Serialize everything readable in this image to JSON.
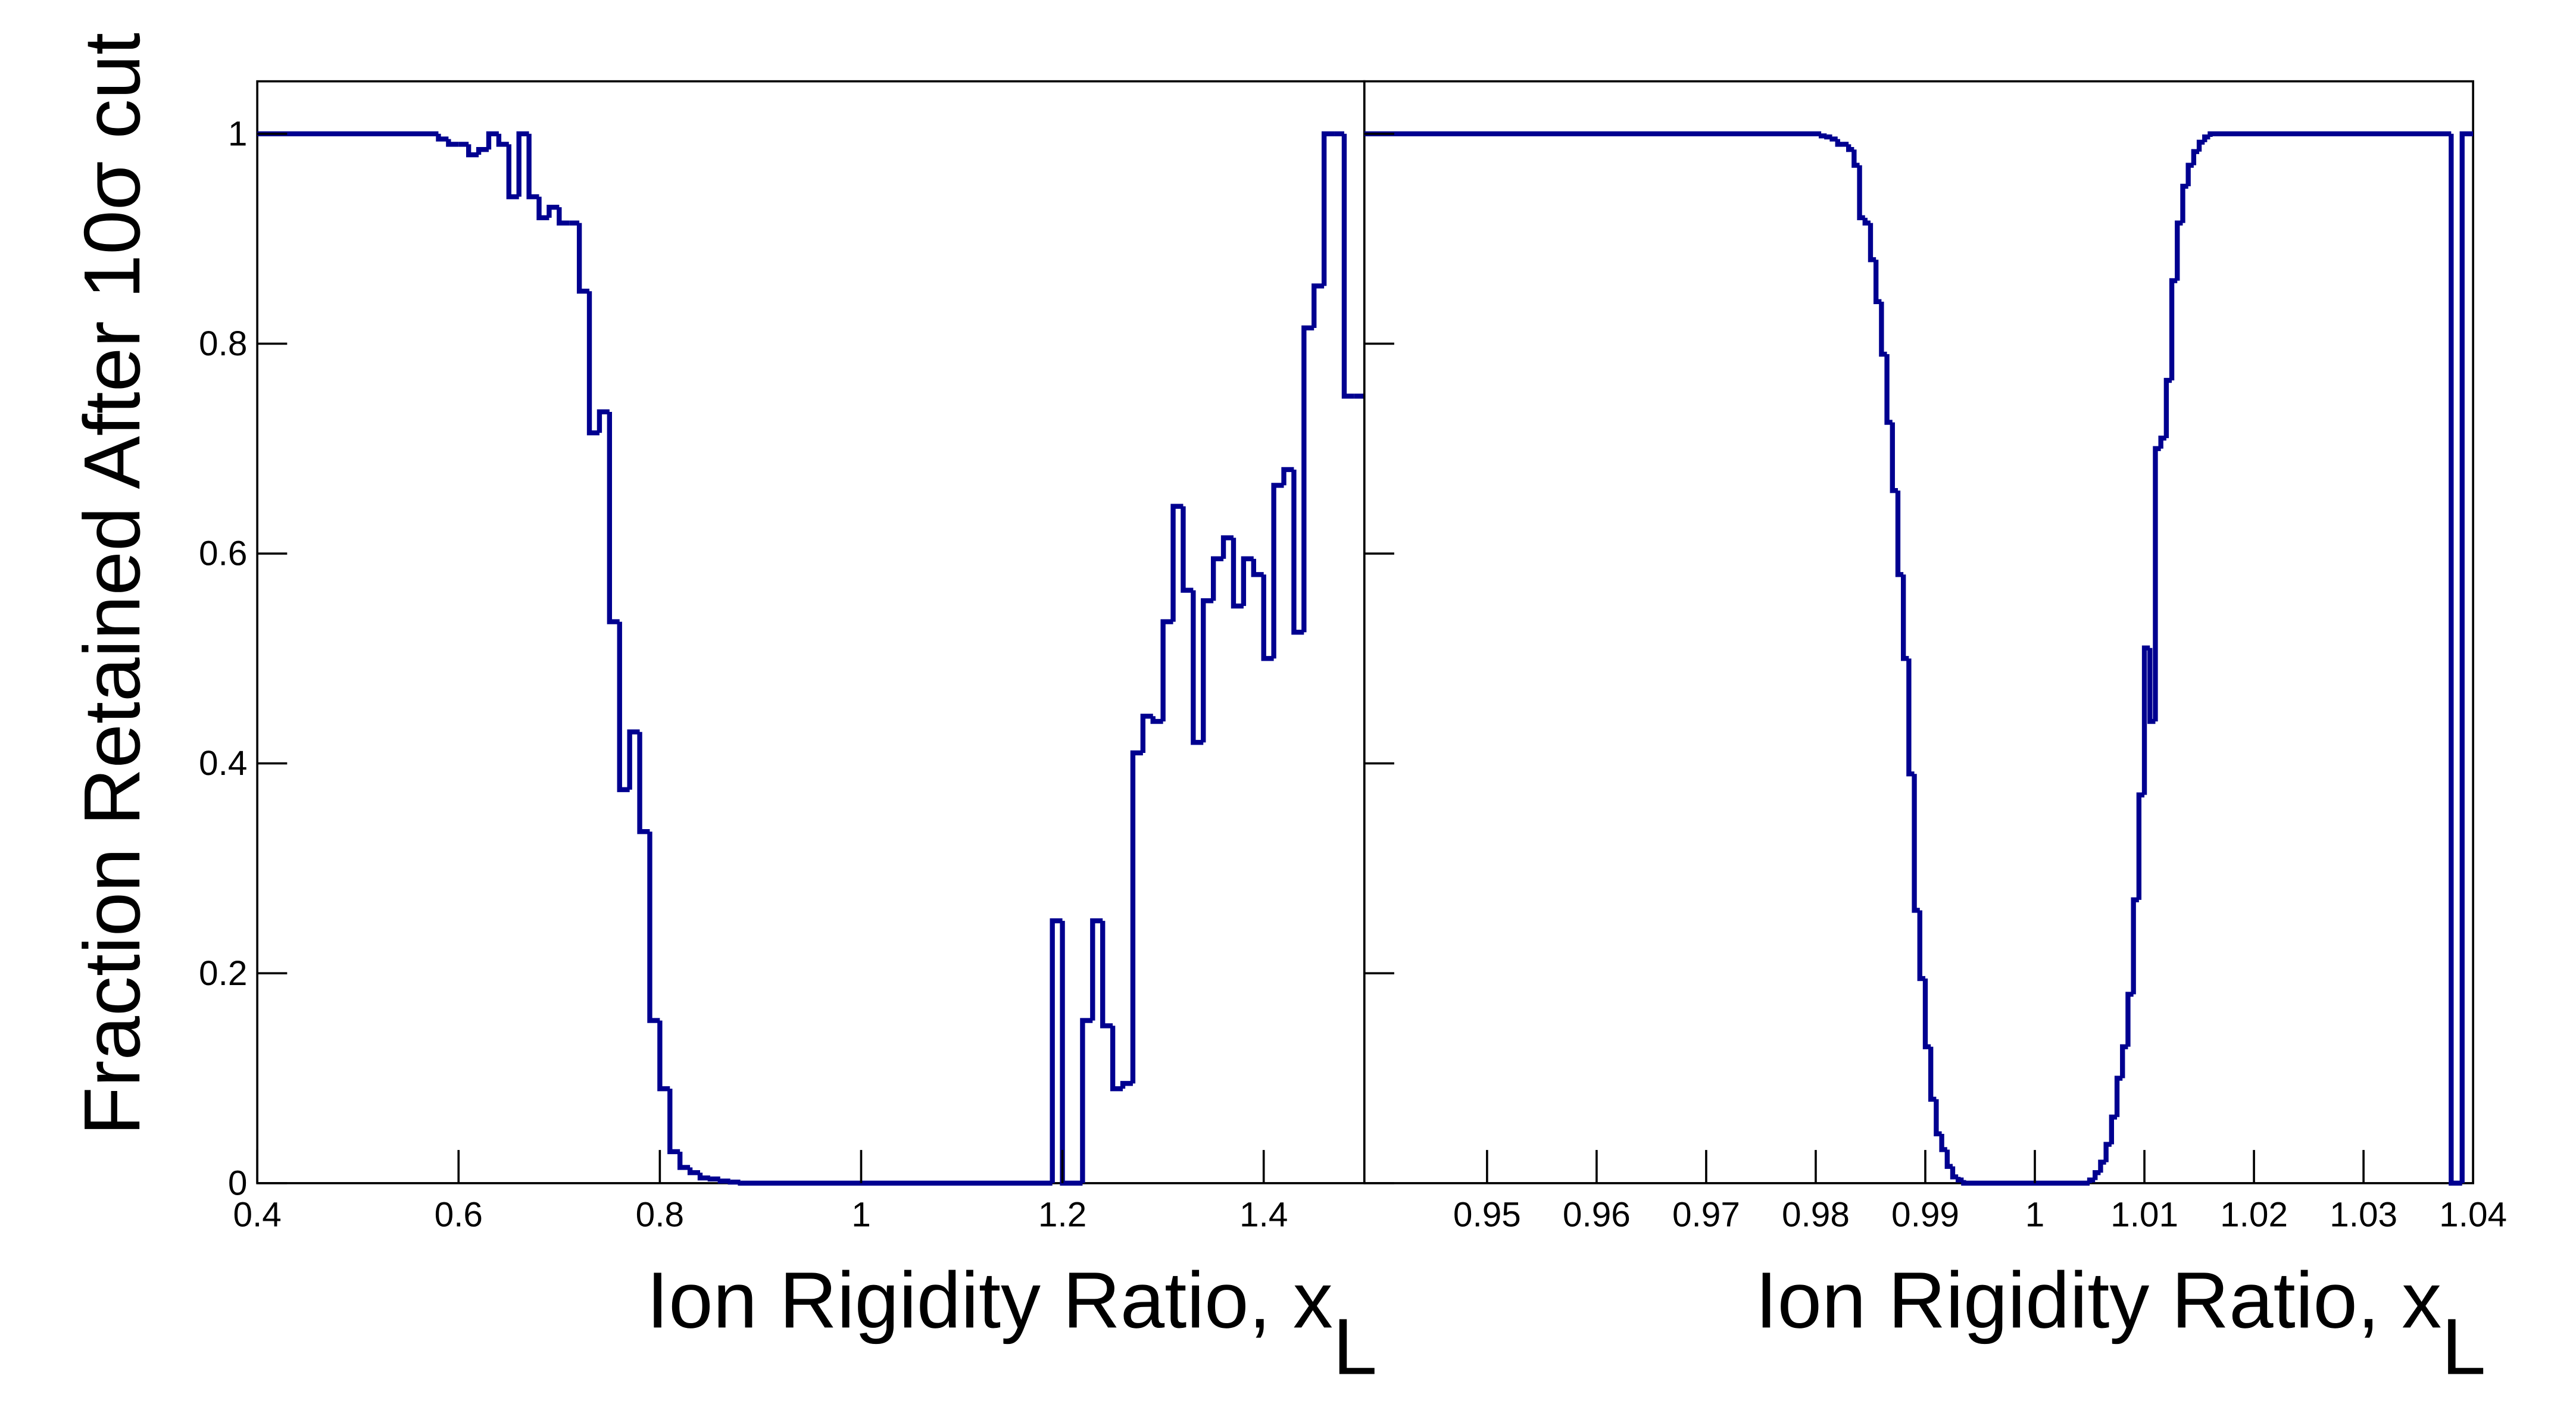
{
  "chart_data": [
    {
      "type": "histogram",
      "ylabel": "Fraction Retained After 10σ cut",
      "xlabel": "Ion Rigidity Ratio, x",
      "xlabel_subscript": "L",
      "color": "#000090",
      "bins": [
        0.4,
        0.58,
        0.59,
        0.6,
        0.61,
        0.62,
        0.63,
        0.64,
        0.65,
        0.66,
        0.67,
        0.68,
        0.69,
        0.7,
        0.71,
        0.72,
        0.73,
        0.74,
        0.75,
        0.76,
        0.77,
        0.78,
        0.79,
        0.8,
        0.81,
        0.82,
        0.83,
        0.84,
        0.85,
        0.86,
        0.87,
        0.88,
        1.19,
        1.2,
        1.21,
        1.22,
        1.23,
        1.24,
        1.25,
        1.26,
        1.27,
        1.28,
        1.29,
        1.3,
        1.31,
        1.32,
        1.33,
        1.34,
        1.35,
        1.36,
        1.37,
        1.38,
        1.39,
        1.4,
        1.41,
        1.42,
        1.43,
        1.44,
        1.45,
        1.46,
        1.47,
        1.48,
        1.49,
        1.5
      ],
      "values": [
        1,
        0.995,
        0.99,
        0.99,
        0.98,
        0.985,
        1.0,
        0.99,
        0.94,
        1.0,
        0.94,
        0.92,
        0.93,
        0.915,
        0.915,
        0.85,
        0.715,
        0.735,
        0.535,
        0.375,
        0.43,
        0.335,
        0.155,
        0.09,
        0.03,
        0.015,
        0.01,
        0.005,
        0.004,
        0.002,
        0.001,
        0,
        0.25,
        0,
        0,
        0.155,
        0.25,
        0.15,
        0.09,
        0.095,
        0.41,
        0.445,
        0.44,
        0.535,
        0.645,
        0.565,
        0.42,
        0.555,
        0.595,
        0.615,
        0.55,
        0.595,
        0.58,
        0.5,
        0.665,
        0.68,
        0.525,
        0.815,
        0.855,
        1.0,
        1.0,
        0.75,
        0.75
      ],
      "xlim": [
        0.4,
        1.5
      ],
      "ylim": [
        0,
        1.05
      ],
      "xticks": [
        0.4,
        0.6,
        0.8,
        1,
        1.2,
        1.4
      ],
      "yticks": [
        0,
        0.2,
        0.4,
        0.6,
        0.8,
        1
      ]
    },
    {
      "type": "histogram",
      "xlabel": "Ion Rigidity Ratio, x",
      "xlabel_subscript": "L",
      "color": "#000090",
      "bins": [
        0.9388,
        0.9805,
        0.981,
        0.9815,
        0.982,
        0.9825,
        0.983,
        0.9835,
        0.984,
        0.9845,
        0.985,
        0.9855,
        0.986,
        0.9865,
        0.987,
        0.9875,
        0.988,
        0.9885,
        0.989,
        0.9895,
        0.99,
        0.9905,
        0.991,
        0.9915,
        0.992,
        0.9925,
        0.993,
        0.9935,
        1.005,
        1.0055,
        1.006,
        1.0065,
        1.007,
        1.0075,
        1.008,
        1.0085,
        1.009,
        1.0095,
        1.01,
        1.0105,
        1.011,
        1.0115,
        1.012,
        1.0125,
        1.013,
        1.0135,
        1.014,
        1.0145,
        1.015,
        1.0155,
        1.016,
        1.038,
        1.039,
        1.04
      ],
      "values": [
        1,
        0.998,
        0.997,
        0.995,
        0.99,
        0.99,
        0.985,
        0.97,
        0.92,
        0.915,
        0.88,
        0.84,
        0.79,
        0.725,
        0.66,
        0.58,
        0.5,
        0.39,
        0.26,
        0.195,
        0.13,
        0.08,
        0.047,
        0.032,
        0.016,
        0.006,
        0.003,
        0,
        0.003,
        0.01,
        0.02,
        0.037,
        0.063,
        0.1,
        0.13,
        0.18,
        0.27,
        0.37,
        0.51,
        0.44,
        0.7,
        0.71,
        0.765,
        0.86,
        0.915,
        0.95,
        0.97,
        0.983,
        0.992,
        0.997,
        1,
        0,
        1
      ],
      "xlim": [
        0.9388,
        1.04
      ],
      "ylim": [
        0,
        1.05
      ],
      "xticks": [
        0.95,
        0.96,
        0.97,
        0.98,
        0.99,
        1,
        1.01,
        1.02,
        1.03,
        1.04
      ]
    }
  ]
}
